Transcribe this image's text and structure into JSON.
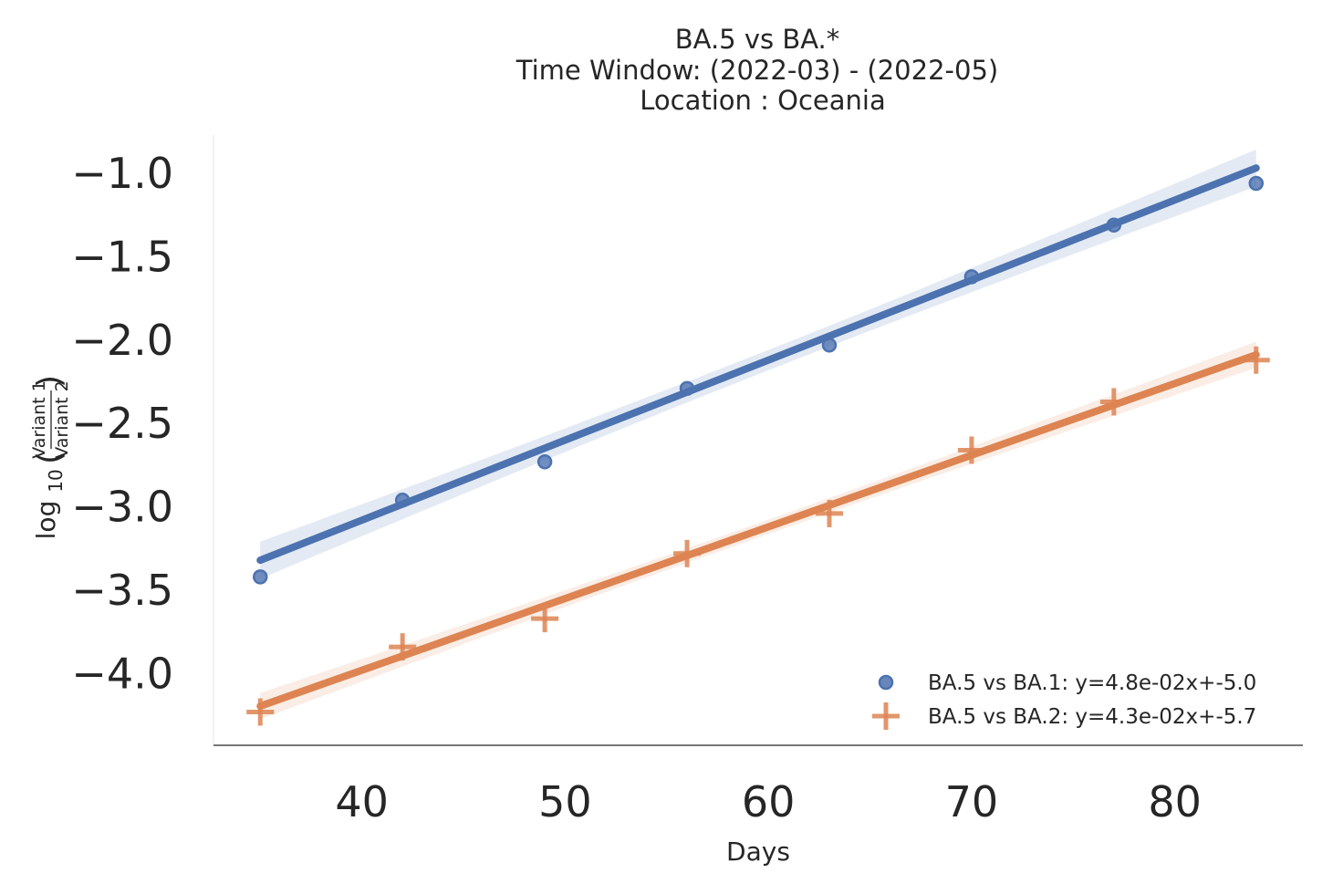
{
  "chart_data": {
    "type": "scatter",
    "title_lines": [
      "BA.5 vs BA.*",
      "Time Window: (2022-03) - (2022-05)",
      "Location : Oceania"
    ],
    "xlabel": "Days",
    "ylabel": {
      "prefix": "log",
      "subscript": "10",
      "numerator": "Variant 1",
      "denominator": "Variant 2"
    },
    "xlim": [
      32.7,
      86.3
    ],
    "ylim": [
      -4.43,
      -0.77
    ],
    "x_ticks": [
      40,
      50,
      60,
      70,
      80
    ],
    "x_tick_labels": [
      "40",
      "50",
      "60",
      "70",
      "80"
    ],
    "y_ticks": [
      -1.0,
      -1.5,
      -2.0,
      -2.5,
      -3.0,
      -3.5,
      -4.0
    ],
    "y_tick_labels": [
      "−1.0",
      "−1.5",
      "−2.0",
      "−2.5",
      "−3.0",
      "−3.5",
      "−4.0"
    ],
    "grid": false,
    "legend_position": "lower-right",
    "series": [
      {
        "name": "BA.5 vs BA.1: y=4.8e-02x+-5.0",
        "marker": "circle",
        "color": "#4c72b0",
        "x": [
          35,
          42,
          49,
          56,
          63,
          70,
          77,
          84
        ],
        "y": [
          -3.42,
          -2.96,
          -2.73,
          -2.29,
          -2.03,
          -1.62,
          -1.31,
          -1.06
        ],
        "fit": {
          "slope": 0.048,
          "intercept": -5.0
        }
      },
      {
        "name": "BA.5 vs BA.2: y=4.3e-02x+-5.7",
        "marker": "plus",
        "color": "#dd8452",
        "x": [
          35,
          42,
          49,
          56,
          63,
          70,
          77,
          84
        ],
        "y": [
          -4.23,
          -3.84,
          -3.67,
          -3.28,
          -3.04,
          -2.66,
          -2.37,
          -2.12
        ],
        "fit": {
          "slope": 0.043,
          "intercept": -5.7
        }
      }
    ]
  }
}
